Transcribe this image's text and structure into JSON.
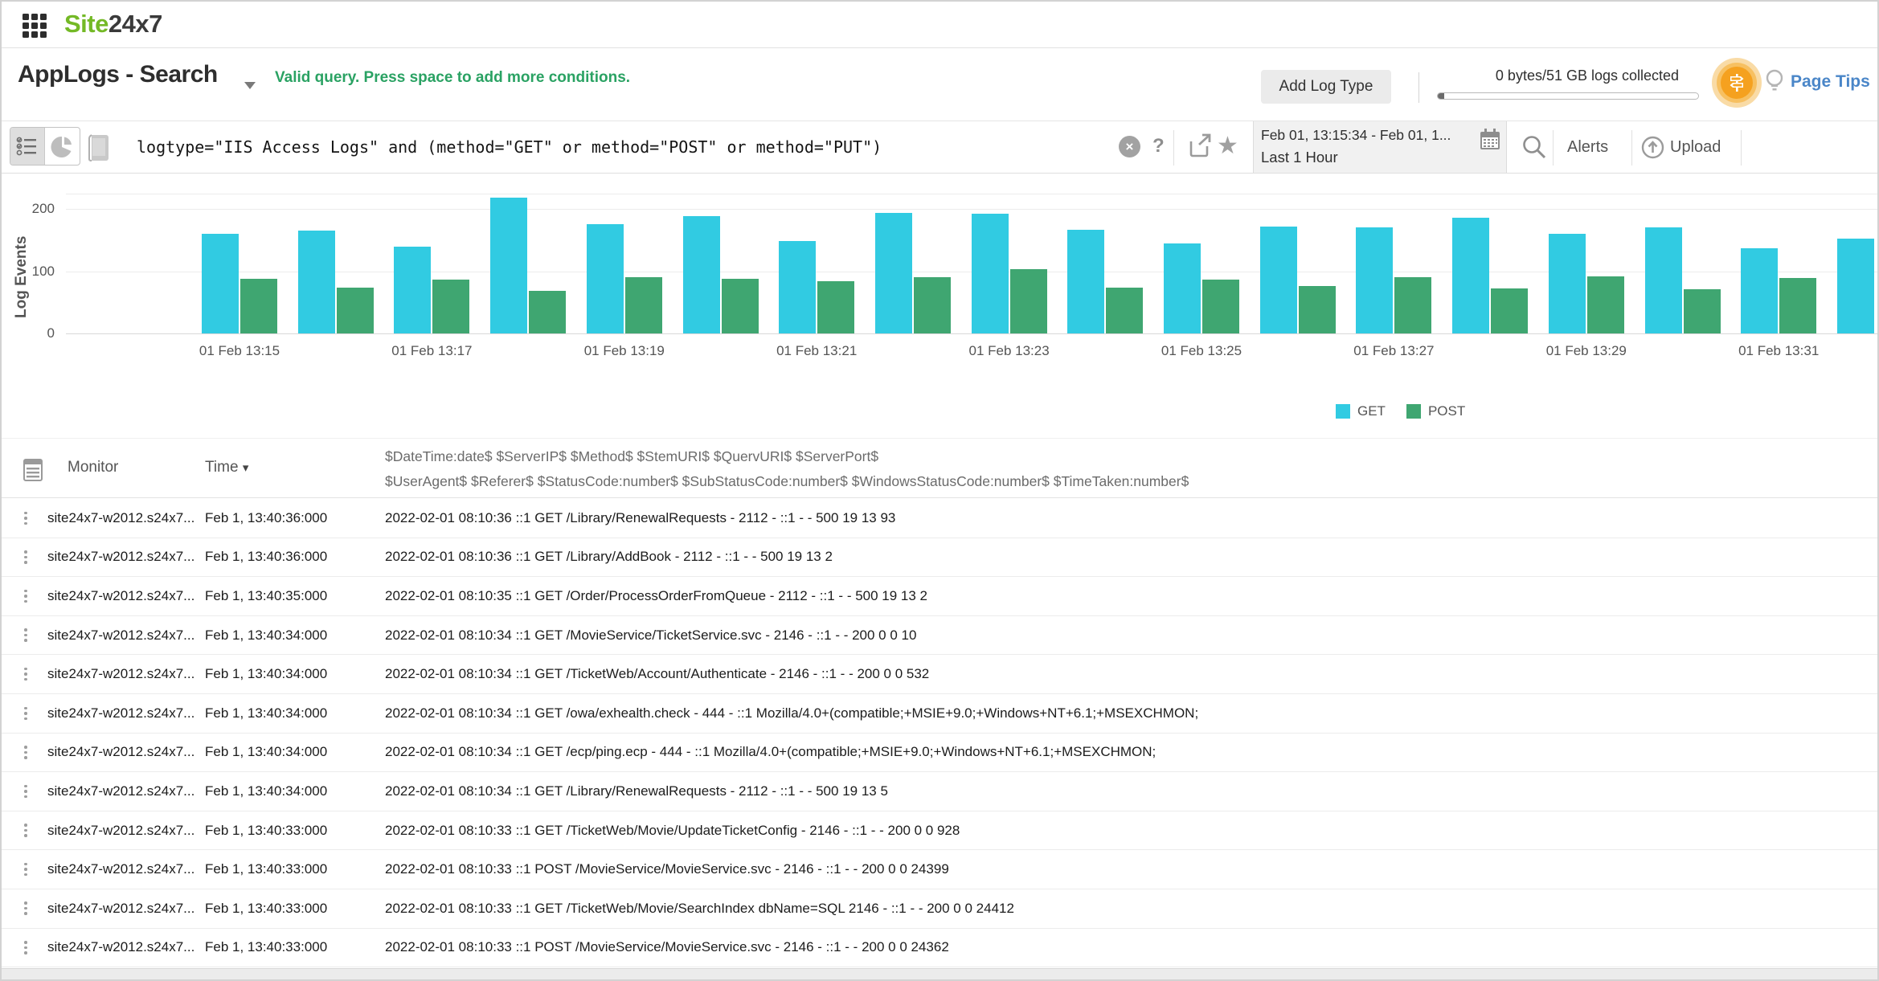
{
  "topbar": {
    "brand_site": "Site",
    "brand_rest": "24x7"
  },
  "header": {
    "title": "AppLogs - Search",
    "query_status": "Valid query. Press space to add more conditions.",
    "add_log_type": "Add Log Type",
    "usage": "0 bytes/51 GB logs collected",
    "page_tips": "Page Tips"
  },
  "querybar": {
    "query": "logtype=\"IIS Access Logs\" and (method=\"GET\" or method=\"POST\" or method=\"PUT\")",
    "help": "?",
    "clear": "×",
    "time_range": "Feb 01, 13:15:34 - Feb 01, 1...",
    "time_preset": "Last 1 Hour",
    "alerts": "Alerts",
    "upload": "Upload"
  },
  "chart_data": {
    "type": "bar",
    "title": "",
    "xlabel": "",
    "ylabel": "Log Events",
    "yticks": [
      0,
      100,
      200
    ],
    "ylim": [
      0,
      225
    ],
    "grid": true,
    "legend_position": "bottom-right",
    "categories": [
      "01 Feb 13:15",
      "01 Feb 13:16",
      "01 Feb 13:17",
      "01 Feb 13:18",
      "01 Feb 13:19",
      "01 Feb 13:20",
      "01 Feb 13:21",
      "01 Feb 13:22",
      "01 Feb 13:23",
      "01 Feb 13:24",
      "01 Feb 13:25",
      "01 Feb 13:26",
      "01 Feb 13:27",
      "01 Feb 13:28",
      "01 Feb 13:29",
      "01 Feb 13:30",
      "01 Feb 13:31",
      "01 Feb 13:32"
    ],
    "xtick_labels": [
      "01 Feb 13:15",
      "01 Feb 13:17",
      "01 Feb 13:19",
      "01 Feb 13:21",
      "01 Feb 13:23",
      "01 Feb 13:25",
      "01 Feb 13:27",
      "01 Feb 13:29",
      "01 Feb 13:31"
    ],
    "series": [
      {
        "name": "GET",
        "color": "#31cbe2",
        "values": [
          160,
          165,
          140,
          218,
          175,
          188,
          148,
          193,
          192,
          166,
          145,
          172,
          170,
          186,
          160,
          170,
          137,
          152
        ]
      },
      {
        "name": "POST",
        "color": "#3fa671",
        "values": [
          88,
          74,
          87,
          68,
          90,
          88,
          84,
          90,
          103,
          73,
          87,
          76,
          90,
          72,
          92,
          71,
          89,
          null
        ]
      }
    ]
  },
  "table": {
    "columns": [
      "Monitor",
      "Time"
    ],
    "format_header_line1": "$DateTime:date$ $ServerIP$ $Method$ $StemURI$ $QuervURI$ $ServerPort$",
    "format_header_line2": "$UserAgent$ $Referer$ $StatusCode:number$ $SubStatusCode:number$ $WindowsStatusCode:number$ $TimeTaken:number$",
    "rows": [
      {
        "monitor": "site24x7-w2012.s24x7...",
        "time": "Feb 1, 13:40:36:000",
        "message": "2022-02-01 08:10:36 ::1 GET /Library/RenewalRequests - 2112 - ::1 - - 500 19 13 93"
      },
      {
        "monitor": "site24x7-w2012.s24x7...",
        "time": "Feb 1, 13:40:36:000",
        "message": "2022-02-01 08:10:36 ::1 GET /Library/AddBook - 2112 - ::1 - - 500 19 13 2"
      },
      {
        "monitor": "site24x7-w2012.s24x7...",
        "time": "Feb 1, 13:40:35:000",
        "message": "2022-02-01 08:10:35 ::1 GET /Order/ProcessOrderFromQueue - 2112 - ::1 - - 500 19 13 2"
      },
      {
        "monitor": "site24x7-w2012.s24x7...",
        "time": "Feb 1, 13:40:34:000",
        "message": "2022-02-01 08:10:34 ::1 GET /MovieService/TicketService.svc - 2146 - ::1 - - 200 0 0 10"
      },
      {
        "monitor": "site24x7-w2012.s24x7...",
        "time": "Feb 1, 13:40:34:000",
        "message": "2022-02-01 08:10:34 ::1 GET /TicketWeb/Account/Authenticate - 2146 - ::1 - - 200 0 0 532"
      },
      {
        "monitor": "site24x7-w2012.s24x7...",
        "time": "Feb 1, 13:40:34:000",
        "message": "2022-02-01 08:10:34 ::1 GET /owa/exhealth.check - 444 - ::1 Mozilla/4.0+(compatible;+MSIE+9.0;+Windows+NT+6.1;+MSEXCHMON;"
      },
      {
        "monitor": "site24x7-w2012.s24x7...",
        "time": "Feb 1, 13:40:34:000",
        "message": "2022-02-01 08:10:34 ::1 GET /ecp/ping.ecp - 444 - ::1 Mozilla/4.0+(compatible;+MSIE+9.0;+Windows+NT+6.1;+MSEXCHMON;"
      },
      {
        "monitor": "site24x7-w2012.s24x7...",
        "time": "Feb 1, 13:40:34:000",
        "message": "2022-02-01 08:10:34 ::1 GET /Library/RenewalRequests - 2112 - ::1 - - 500 19 13 5"
      },
      {
        "monitor": "site24x7-w2012.s24x7...",
        "time": "Feb 1, 13:40:33:000",
        "message": "2022-02-01 08:10:33 ::1 GET /TicketWeb/Movie/UpdateTicketConfig - 2146 - ::1 - - 200 0 0 928"
      },
      {
        "monitor": "site24x7-w2012.s24x7...",
        "time": "Feb 1, 13:40:33:000",
        "message": "2022-02-01 08:10:33 ::1 POST /MovieService/MovieService.svc - 2146 - ::1 - - 200 0 0 24399"
      },
      {
        "monitor": "site24x7-w2012.s24x7...",
        "time": "Feb 1, 13:40:33:000",
        "message": "2022-02-01 08:10:33 ::1 GET /TicketWeb/Movie/SearchIndex dbName=SQL 2146 - ::1 - - 200 0 0 24412"
      },
      {
        "monitor": "site24x7-w2012.s24x7...",
        "time": "Feb 1, 13:40:33:000",
        "message": "2022-02-01 08:10:33 ::1 POST /MovieService/MovieService.svc - 2146 - ::1 - - 200 0 0 24362"
      }
    ]
  }
}
